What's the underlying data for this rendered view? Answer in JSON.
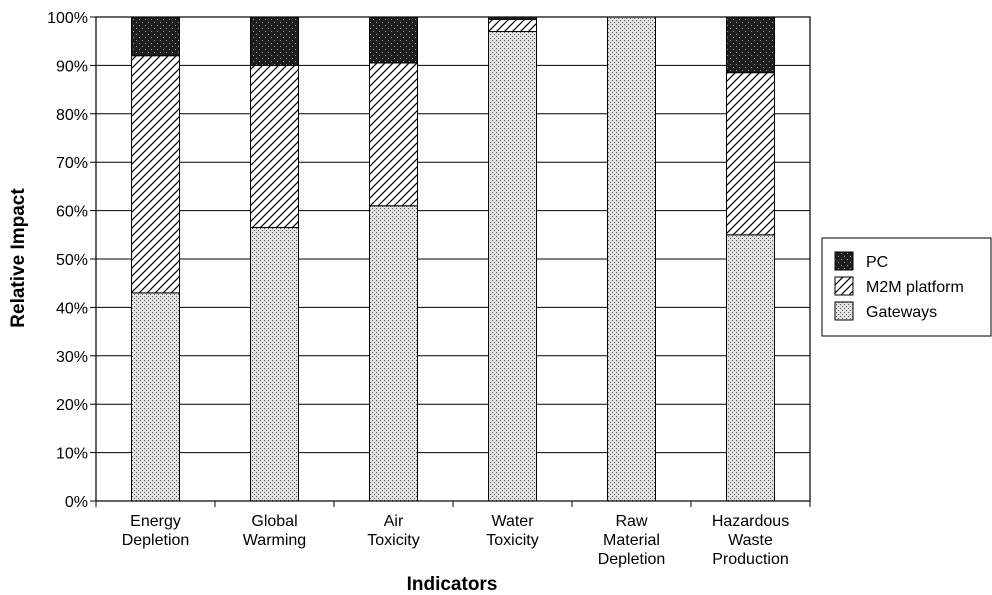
{
  "chart_data": {
    "type": "bar",
    "stacked": true,
    "title": "",
    "xlabel": "Indicators",
    "ylabel": "Relative Impact",
    "ylim": [
      0,
      100
    ],
    "yticks": [
      "0%",
      "10%",
      "20%",
      "30%",
      "40%",
      "50%",
      "60%",
      "70%",
      "80%",
      "90%",
      "100%"
    ],
    "grid": true,
    "legend_position": "right",
    "categories": [
      [
        "Energy",
        "Depletion"
      ],
      [
        "Global",
        "Warming"
      ],
      [
        "Air",
        "Toxicity"
      ],
      [
        "Water",
        "Toxicity"
      ],
      [
        "Raw",
        "Material",
        "Depletion"
      ],
      [
        "Hazardous",
        "Waste",
        "Production"
      ]
    ],
    "series": [
      {
        "name": "Gateways",
        "values": [
          43,
          56.5,
          61,
          97,
          100,
          55
        ],
        "pattern": "fine-dots",
        "color": "#c8c8c8"
      },
      {
        "name": "M2M platform",
        "values": [
          49,
          33.5,
          29.5,
          2.5,
          0,
          33.5
        ],
        "pattern": "diagonal-hatch",
        "color": "#ffffff"
      },
      {
        "name": "PC",
        "values": [
          8,
          10,
          9.5,
          0.5,
          0,
          11.5
        ],
        "pattern": "dark-dots",
        "color": "#2a2a2a"
      }
    ],
    "legend_order": [
      "PC",
      "M2M platform",
      "Gateways"
    ]
  }
}
